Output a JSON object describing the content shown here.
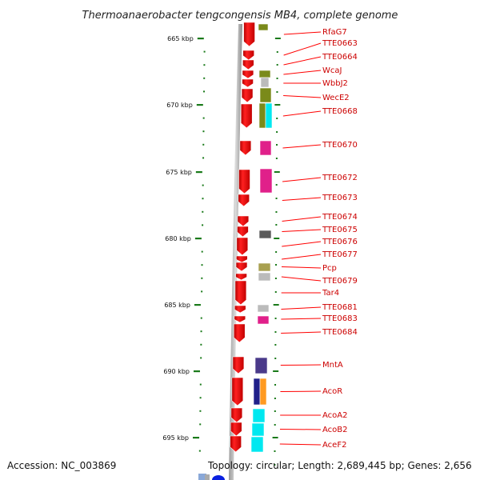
{
  "title": "Thermoanaerobacter tengcongensis MB4, complete genome",
  "footer": {
    "accession": "Accession: NC_003869",
    "topology": "Topology: circular; Length: 2,689,445 bp; Genes: 2,656"
  },
  "ticks": [
    "665 kbp",
    "670 kbp",
    "675 kbp",
    "680 kbp",
    "685 kbp",
    "690 kbp",
    "695 kbp"
  ],
  "genes": [
    {
      "name": "RfaG7",
      "color": "#ff0000"
    },
    {
      "name": "TTE0663",
      "color": "#ff0000"
    },
    {
      "name": "TTE0664",
      "color": "#ff0000"
    },
    {
      "name": "WcaJ",
      "color": "#ff0000"
    },
    {
      "name": "WbbJ2",
      "color": "#ff0000"
    },
    {
      "name": "WecE2",
      "color": "#ff0000"
    },
    {
      "name": "TTE0668",
      "color": "#ff0000"
    },
    {
      "name": "TTE0670",
      "color": "#ff0000"
    },
    {
      "name": "TTE0672",
      "color": "#ff0000"
    },
    {
      "name": "TTE0673",
      "color": "#ff0000"
    },
    {
      "name": "TTE0674",
      "color": "#ff0000"
    },
    {
      "name": "TTE0675",
      "color": "#ff0000"
    },
    {
      "name": "TTE0676",
      "color": "#ff0000"
    },
    {
      "name": "TTE0677",
      "color": "#ff0000"
    },
    {
      "name": "Pcp",
      "color": "#ff0000"
    },
    {
      "name": "TTE0679",
      "color": "#ff0000"
    },
    {
      "name": "Tar4",
      "color": "#ff0000"
    },
    {
      "name": "TTE0681",
      "color": "#ff0000"
    },
    {
      "name": "TTE0683",
      "color": "#ff0000"
    },
    {
      "name": "TTE0684",
      "color": "#ff0000"
    },
    {
      "name": "MntA",
      "color": "#ff0000"
    },
    {
      "name": "AcoR",
      "color": "#ff0000"
    },
    {
      "name": "AcoA2",
      "color": "#ff0000"
    },
    {
      "name": "AcoB2",
      "color": "#ff0000"
    },
    {
      "name": "AceF2",
      "color": "#ff0000"
    }
  ],
  "colors": {
    "gene": "#ff0000",
    "label": "#cc0000",
    "tick": "#1a7a1a",
    "backbone": "#888888",
    "olive": "#7a8a1a",
    "magenta": "#e0208a",
    "gray": "#5a5a5a",
    "khaki": "#a8a050",
    "purple": "#4a3a8a",
    "navy": "#20208a",
    "orange": "#ff9a20",
    "cyan": "#00e8f0"
  }
}
